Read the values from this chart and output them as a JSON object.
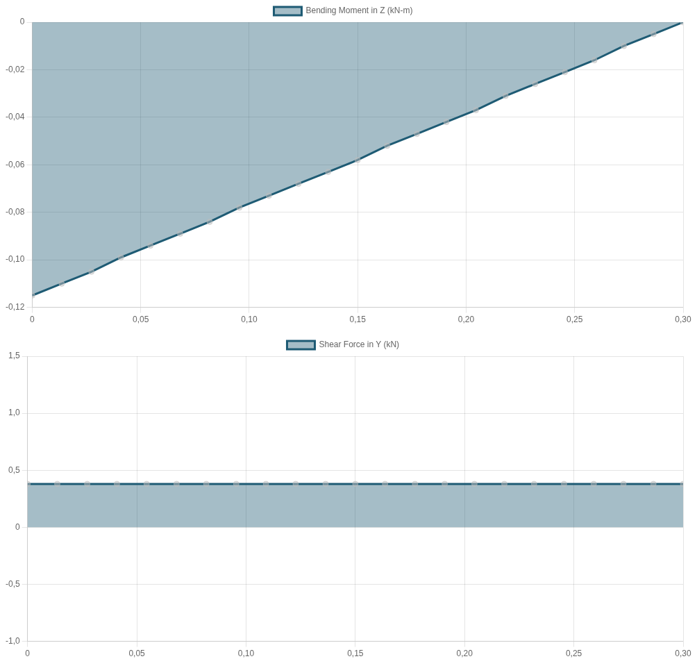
{
  "chart_data": [
    {
      "type": "area",
      "x": [
        0,
        0.0136,
        0.0273,
        0.0409,
        0.0545,
        0.0682,
        0.0818,
        0.0955,
        0.1091,
        0.1227,
        0.1364,
        0.15,
        0.1636,
        0.1773,
        0.1909,
        0.2045,
        0.2182,
        0.2318,
        0.2455,
        0.2591,
        0.2727,
        0.2864,
        0.3
      ],
      "series": [
        {
          "name": "Bending Moment in Z (kN-m)",
          "color": "#1e5b74",
          "values": [
            -0.115,
            -0.11,
            -0.105,
            -0.099,
            -0.094,
            -0.089,
            -0.084,
            -0.078,
            -0.073,
            -0.068,
            -0.063,
            -0.058,
            -0.052,
            -0.047,
            -0.042,
            -0.037,
            -0.031,
            -0.026,
            -0.021,
            -0.016,
            -0.01,
            -0.005,
            0
          ]
        }
      ],
      "xlim": [
        0,
        0.3
      ],
      "xticks": [
        0,
        {
          "value": 0.05,
          "label": "0,05"
        },
        {
          "value": 0.1,
          "label": "0,10"
        },
        {
          "value": 0.15,
          "label": "0,15"
        },
        {
          "value": 0.2,
          "label": "0,20"
        },
        {
          "value": 0.25,
          "label": "0,25"
        },
        {
          "value": 0.3,
          "label": "0,30"
        }
      ],
      "ylim": [
        -0.12,
        0
      ],
      "yticks": [
        {
          "value": -0.12,
          "label": "-0,12"
        },
        {
          "value": -0.1,
          "label": "-0,10"
        },
        {
          "value": -0.08,
          "label": "-0,08"
        },
        {
          "value": -0.06,
          "label": "-0,06"
        },
        {
          "value": -0.04,
          "label": "-0,04"
        },
        {
          "value": -0.02,
          "label": "-0,02"
        },
        0
      ],
      "grid": true,
      "legend": "top",
      "marker": "circle"
    },
    {
      "type": "area",
      "x": [
        0,
        0.0136,
        0.0273,
        0.0409,
        0.0545,
        0.0682,
        0.0818,
        0.0955,
        0.1091,
        0.1227,
        0.1364,
        0.15,
        0.1636,
        0.1773,
        0.1909,
        0.2045,
        0.2182,
        0.2318,
        0.2455,
        0.2591,
        0.2727,
        0.2864,
        0.3
      ],
      "series": [
        {
          "name": "Shear Force in Y (kN)",
          "color": "#1e5b74",
          "values": [
            0.38,
            0.38,
            0.38,
            0.38,
            0.38,
            0.38,
            0.38,
            0.38,
            0.38,
            0.38,
            0.38,
            0.38,
            0.38,
            0.38,
            0.38,
            0.38,
            0.38,
            0.38,
            0.38,
            0.38,
            0.38,
            0.38,
            0.38
          ]
        }
      ],
      "xlim": [
        0,
        0.3
      ],
      "xticks": [
        0,
        {
          "value": 0.05,
          "label": "0,05"
        },
        {
          "value": 0.1,
          "label": "0,10"
        },
        {
          "value": 0.15,
          "label": "0,15"
        },
        {
          "value": 0.2,
          "label": "0,20"
        },
        {
          "value": 0.25,
          "label": "0,25"
        },
        {
          "value": 0.3,
          "label": "0,30"
        }
      ],
      "ylim": [
        -1,
        1.5
      ],
      "yticks": [
        {
          "value": -1,
          "label": "-1,0"
        },
        {
          "value": -0.5,
          "label": "-0,5"
        },
        0,
        {
          "value": 0.5,
          "label": "0,5"
        },
        {
          "value": 1,
          "label": "1,0"
        },
        {
          "value": 1.5,
          "label": "1,5"
        }
      ],
      "grid": true,
      "legend": "top",
      "marker": "circle"
    }
  ]
}
